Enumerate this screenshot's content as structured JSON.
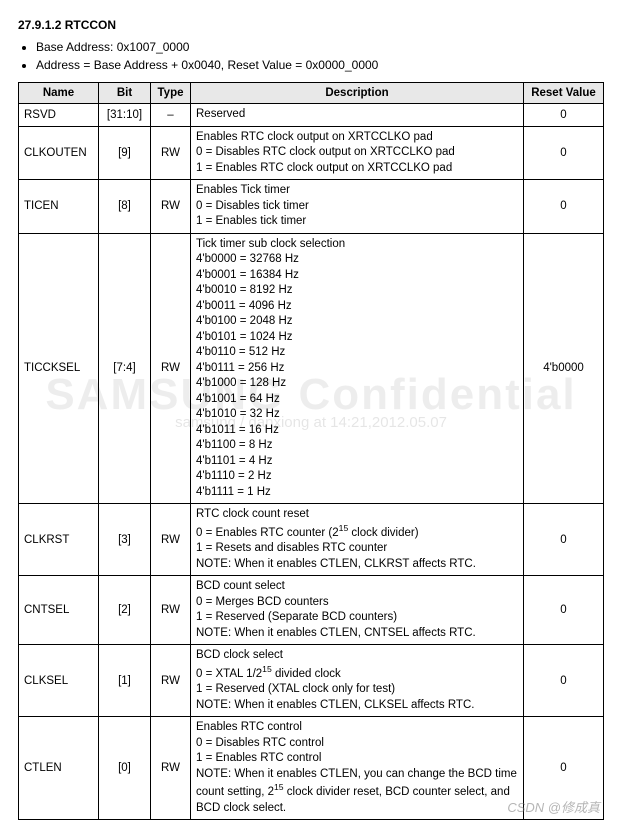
{
  "header": {
    "title": "27.9.1.2 RTCCON",
    "bullets": [
      "Base Address: 0x1007_0000",
      "Address = Base Address + 0x0040, Reset Value = 0x0000_0000"
    ]
  },
  "watermark": {
    "big": "SAMSUNG Confidential",
    "small": "samsung / danxiong at 14:21,2012.05.07"
  },
  "csdn_mark": "CSDN @修成真",
  "table": {
    "headers": {
      "name": "Name",
      "bit": "Bit",
      "type": "Type",
      "desc": "Description",
      "reset": "Reset Value"
    },
    "rows": [
      {
        "name": "RSVD",
        "bit": "[31:10]",
        "type": "–",
        "desc_lines": [
          "Reserved"
        ],
        "reset": "0"
      },
      {
        "name": "CLKOUTEN",
        "bit": "[9]",
        "type": "RW",
        "desc_lines": [
          "Enables RTC clock output on XRTCCLKO pad",
          "0 = Disables RTC clock output on XRTCCLKO pad",
          "1 = Enables RTC clock output on XRTCCLKO pad"
        ],
        "reset": "0"
      },
      {
        "name": "TICEN",
        "bit": "[8]",
        "type": "RW",
        "desc_lines": [
          "Enables Tick timer",
          "0 = Disables tick timer",
          "1 = Enables tick timer"
        ],
        "reset": "0"
      },
      {
        "name": "TICCKSEL",
        "bit": "[7:4]",
        "type": "RW",
        "desc_lines": [
          "Tick timer sub clock selection",
          "4'b0000 = 32768 Hz",
          "4'b0001 = 16384 Hz",
          "4'b0010 = 8192 Hz",
          "4'b0011 = 4096 Hz",
          "4'b0100 = 2048 Hz",
          "4'b0101 = 1024 Hz",
          "4'b0110 = 512 Hz",
          "4'b0111 = 256 Hz",
          "4'b1000 = 128 Hz",
          "4'b1001 = 64 Hz",
          "4'b1010 = 32 Hz",
          "4'b1011 = 16 Hz",
          "4'b1100 = 8 Hz",
          "4'b1101 = 4 Hz",
          "4'b1110 = 2 Hz",
          "4'b1111 = 1 Hz"
        ],
        "reset": "4'b0000"
      },
      {
        "name": "CLKRST",
        "bit": "[3]",
        "type": "RW",
        "desc_lines": [
          "RTC clock count reset",
          "0 = Enables RTC counter (2^15 clock divider)",
          "1 = Resets and disables RTC counter",
          "NOTE: When it enables CTLEN, CLKRST affects RTC."
        ],
        "reset": "0"
      },
      {
        "name": "CNTSEL",
        "bit": "[2]",
        "type": "RW",
        "desc_lines": [
          "BCD count select",
          "0 = Merges BCD counters",
          "1 = Reserved (Separate BCD counters)",
          "NOTE: When it enables CTLEN, CNTSEL affects RTC."
        ],
        "reset": "0"
      },
      {
        "name": "CLKSEL",
        "bit": "[1]",
        "type": "RW",
        "desc_lines": [
          "BCD clock select",
          "0 = XTAL 1/2^15 divided clock",
          "1 = Reserved (XTAL clock only for test)",
          "NOTE: When it enables CTLEN, CLKSEL affects RTC."
        ],
        "reset": "0"
      },
      {
        "name": "CTLEN",
        "bit": "[0]",
        "type": "RW",
        "desc_lines": [
          "Enables RTC control",
          "0 = Disables RTC control",
          "1 = Enables RTC control",
          "NOTE: When it enables CTLEN, you can change the BCD time count setting, 2^15 clock divider reset, BCD counter select, and BCD clock select."
        ],
        "reset": "0"
      }
    ]
  }
}
